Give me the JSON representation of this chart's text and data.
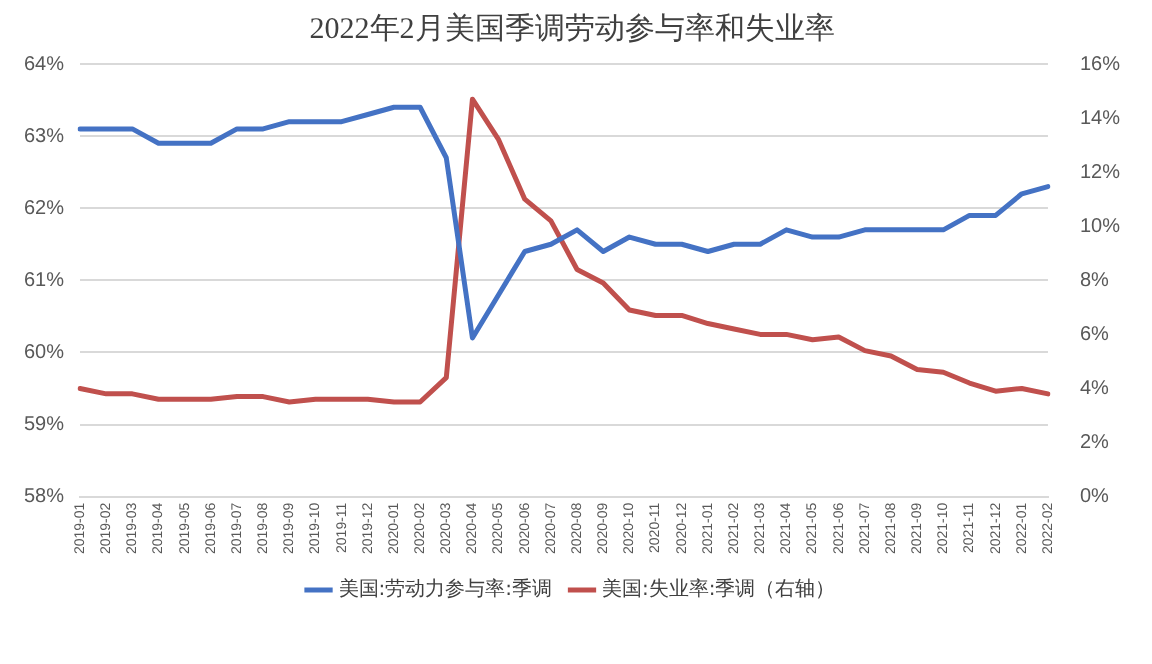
{
  "chart_data": {
    "type": "line",
    "title": "2022年2月美国季调劳动参与率和失业率",
    "categories": [
      "2019-01",
      "2019-02",
      "2019-03",
      "2019-04",
      "2019-05",
      "2019-06",
      "2019-07",
      "2019-08",
      "2019-09",
      "2019-10",
      "2019-11",
      "2019-12",
      "2020-01",
      "2020-02",
      "2020-03",
      "2020-04",
      "2020-05",
      "2020-06",
      "2020-07",
      "2020-08",
      "2020-09",
      "2020-10",
      "2020-11",
      "2020-12",
      "2021-01",
      "2021-02",
      "2021-03",
      "2021-04",
      "2021-05",
      "2021-06",
      "2021-07",
      "2021-08",
      "2021-09",
      "2021-10",
      "2021-11",
      "2021-12",
      "2022-01",
      "2022-02"
    ],
    "series": [
      {
        "name": "美国:劳动力参与率:季调",
        "color": "#4472c4",
        "values": [
          63.1,
          63.1,
          63.1,
          62.9,
          62.9,
          62.9,
          63.1,
          63.1,
          63.2,
          63.2,
          63.2,
          63.3,
          63.4,
          63.4,
          62.7,
          60.2,
          60.8,
          61.4,
          61.5,
          61.7,
          61.4,
          61.6,
          61.5,
          61.5,
          61.4,
          61.5,
          61.5,
          61.7,
          61.6,
          61.6,
          61.7,
          61.7,
          61.7,
          61.7,
          61.9,
          61.9,
          62.2,
          62.3
        ]
      },
      {
        "name": "美国:失业率:季调（右轴）",
        "color": "#c0504d",
        "axis": "y2",
        "values": [
          4.0,
          3.8,
          3.8,
          3.6,
          3.6,
          3.6,
          3.7,
          3.7,
          3.5,
          3.6,
          3.6,
          3.6,
          3.5,
          3.5,
          4.4,
          14.7,
          13.2,
          11.0,
          10.2,
          8.4,
          7.9,
          6.9,
          6.7,
          6.7,
          6.4,
          6.2,
          6.0,
          6.0,
          5.8,
          5.9,
          5.4,
          5.2,
          4.7,
          4.6,
          4.2,
          3.9,
          4.0,
          3.8
        ]
      }
    ],
    "ylim": [
      58,
      64
    ],
    "yticks": [
      {
        "value": 58,
        "label": "58%"
      },
      {
        "value": 59,
        "label": "59%"
      },
      {
        "value": 60,
        "label": "60%"
      },
      {
        "value": 61,
        "label": "61%"
      },
      {
        "value": 62,
        "label": "62%"
      },
      {
        "value": 63,
        "label": "63%"
      },
      {
        "value": 64,
        "label": "64%"
      }
    ],
    "y2lim": [
      0,
      16
    ],
    "y2ticks": [
      {
        "value": 0,
        "label": "0%"
      },
      {
        "value": 2,
        "label": "2%"
      },
      {
        "value": 4,
        "label": "4%"
      },
      {
        "value": 6,
        "label": "6%"
      },
      {
        "value": 8,
        "label": "8%"
      },
      {
        "value": 10,
        "label": "10%"
      },
      {
        "value": 12,
        "label": "12%"
      },
      {
        "value": 14,
        "label": "14%"
      },
      {
        "value": 16,
        "label": "16%"
      }
    ],
    "grid": "y",
    "legend": "bottom",
    "marker": "none",
    "line_style": "solid"
  }
}
